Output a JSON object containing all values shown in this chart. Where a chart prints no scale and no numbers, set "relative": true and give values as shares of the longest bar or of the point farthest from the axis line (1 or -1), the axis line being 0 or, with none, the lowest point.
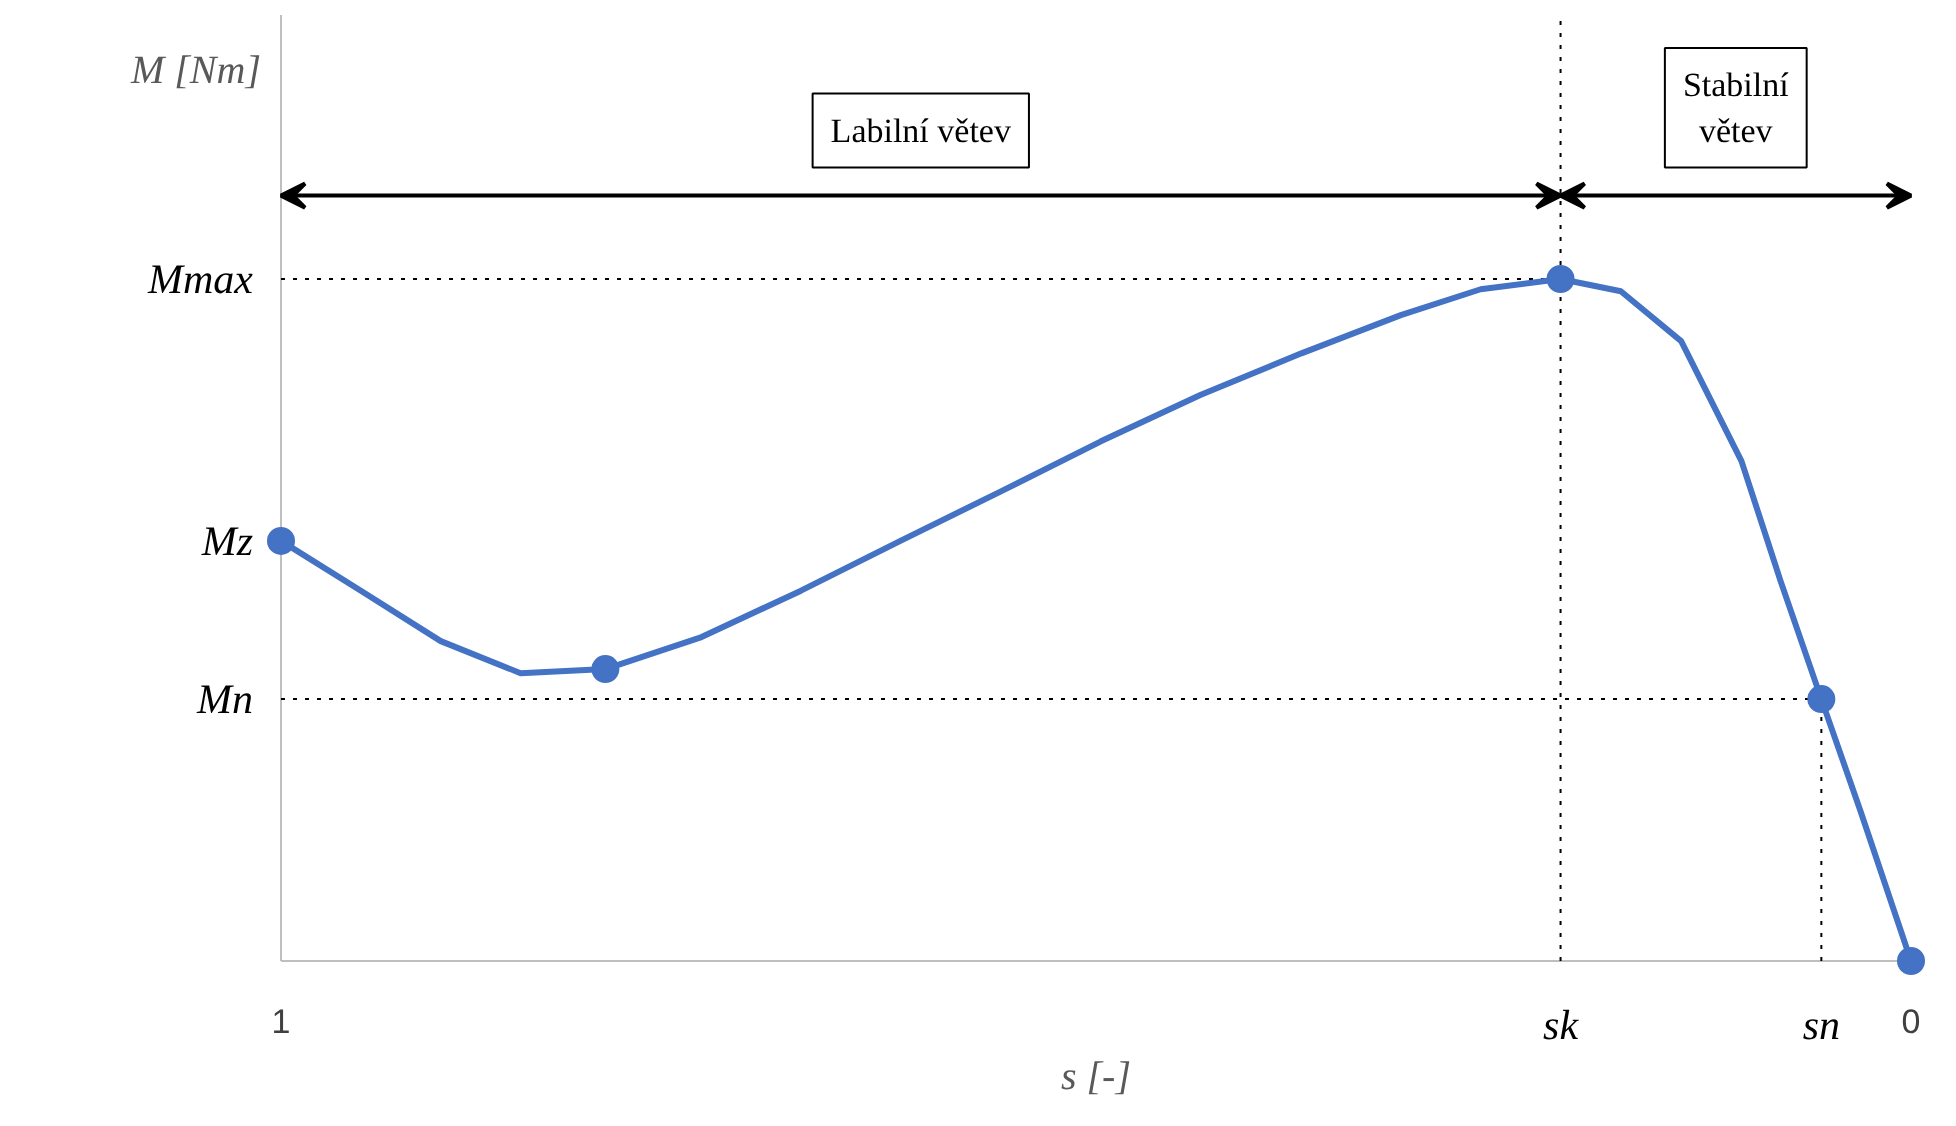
{
  "chart_data": {
    "type": "line",
    "relative": true,
    "xlabel": "s [-]",
    "ylabel": "M [Nm]",
    "xlim": [
      1,
      0
    ],
    "xticks": [
      1,
      0
    ],
    "marker": "none",
    "line_style": "solid",
    "grid": false,
    "series": [
      {
        "color": "#4472c4",
        "x": [
          1,
          0.951,
          0.902,
          0.853,
          0.801,
          0.742,
          0.681,
          0.62,
          0.558,
          0.497,
          0.436,
          0.374,
          0.313,
          0.264,
          0.215,
          0.178,
          0.141,
          0.104,
          0.08,
          0.055,
          0.031,
          0
        ],
        "values": [
          0.616,
          0.543,
          0.469,
          0.422,
          0.428,
          0.475,
          0.543,
          0.616,
          0.689,
          0.762,
          0.83,
          0.891,
          0.947,
          0.985,
          1,
          0.982,
          0.909,
          0.733,
          0.557,
          0.384,
          0.22,
          0
        ]
      },
      {
        "type": "scatter",
        "color": "#4472c4",
        "marker": "circle",
        "x": [
          1,
          0.801,
          0.215,
          0.055,
          0
        ],
        "values": [
          0.616,
          0.428,
          1,
          0.384,
          0
        ]
      }
    ],
    "ref_lines": [
      {
        "axis": "y",
        "value": 1,
        "label": "Mmax",
        "line_style": "dotted",
        "color": "#000000"
      },
      {
        "axis": "y",
        "value": 0.384,
        "label": "Mn",
        "line_style": "dotted",
        "color": "#000000"
      },
      {
        "axis": "x",
        "value": 0.215,
        "label": "sk",
        "line_style": "dotted",
        "color": "#000000"
      },
      {
        "axis": "x",
        "value": 0.055,
        "label": "sn",
        "line_style": "dotted",
        "color": "#000000"
      }
    ],
    "annotations": [
      {
        "text": "Mz",
        "x": 1,
        "y": 0.616
      },
      "Labilní větev",
      "Stabilní větev"
    ]
  }
}
